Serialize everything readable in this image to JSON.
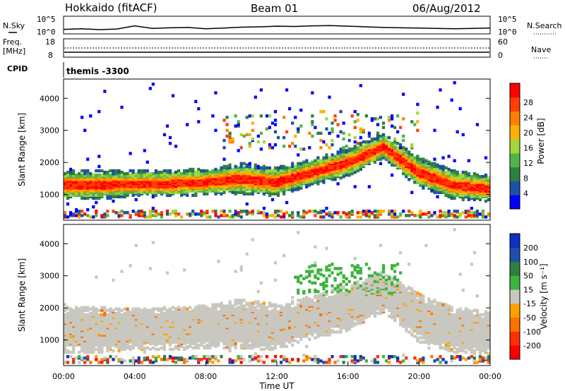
{
  "header": {
    "station": "Hokkaido (fitACF)",
    "beam": "Beam 01",
    "date": "06/Aug/2012"
  },
  "top_panels": {
    "nsky_label": "N.Sky",
    "nsearch_label": "N.Search",
    "noise_ticks": [
      "10^5",
      "10^0"
    ],
    "freq_label": "Freq.",
    "freq_unit": "[MHz]",
    "freq_ticks": [
      "18",
      "8"
    ],
    "nave_label": "Nave",
    "nave_ticks": [
      "60",
      "0"
    ],
    "cpid_label": "CPID",
    "cpid_value": "themis -3300"
  },
  "colors": {
    "power_scale": [
      "#0000ff",
      "#1e4fa8",
      "#2f7f3f",
      "#52b447",
      "#a3d63a",
      "#ffb000",
      "#ff8000",
      "#ff4000",
      "#ff0000"
    ],
    "velocity_scale": [
      "#1030c0",
      "#1e4fa8",
      "#2f7f3f",
      "#3cb43c",
      "#c8c8c0",
      "#ffa000",
      "#ff7000",
      "#ff3000",
      "#ff0000"
    ],
    "gray_scatter": "#c8c8c0"
  },
  "chart_data": [
    {
      "type": "line",
      "panel": "noise",
      "series": [
        {
          "name": "N.Sky",
          "x": [
            "00:00",
            "01:00",
            "02:00",
            "03:00",
            "04:00",
            "05:00",
            "06:00",
            "07:00",
            "08:00",
            "09:00",
            "10:00",
            "11:00",
            "12:00",
            "13:00",
            "14:00",
            "15:00",
            "16:00",
            "17:00",
            "18:00",
            "19:00",
            "20:00",
            "21:00",
            "22:00",
            "23:00",
            "24:00"
          ],
          "values": [
            1.2,
            1.4,
            1.1,
            1.3,
            2.3,
            1.5,
            1.7,
            1.8,
            1.4,
            1.6,
            1.9,
            2.0,
            2.2,
            2.1,
            2.3,
            2.4,
            2.2,
            2.0,
            1.8,
            1.7,
            1.6,
            1.5,
            1.4,
            1.5,
            1.6
          ]
        },
        {
          "name": "N.Search",
          "x": [],
          "values": []
        }
      ],
      "ylim": [
        0,
        5
      ],
      "yscale": "log"
    },
    {
      "type": "line",
      "panel": "frequency",
      "series": [
        {
          "name": "Freq.",
          "x": [
            "00:00",
            "24:00"
          ],
          "values": [
            10.9,
            10.9
          ]
        },
        {
          "name": "Nave",
          "x": [
            "00:00",
            "24:00"
          ],
          "values": [
            34,
            34
          ]
        }
      ],
      "ylim": [
        8,
        18
      ],
      "y2lim": [
        0,
        60
      ]
    },
    {
      "type": "heatmap",
      "panel": "power",
      "ylabel": "Slant Range [km]",
      "yticks": [
        "1000",
        "2000",
        "3000",
        "4000"
      ],
      "ylim": [
        200,
        4600
      ],
      "xlim": [
        0,
        24
      ],
      "colorbar": {
        "label": "Power [dB]",
        "ticks": [
          "28",
          "24",
          "20",
          "16",
          "12",
          "8",
          "4"
        ],
        "range": [
          0,
          32
        ]
      },
      "bands": [
        {
          "t": [
            0,
            2,
            4,
            6,
            8,
            10,
            12,
            14,
            16,
            18,
            20,
            22,
            24
          ],
          "center": [
            1300,
            1300,
            1350,
            1350,
            1400,
            1500,
            1400,
            1700,
            2000,
            2500,
            1700,
            1300,
            1200
          ],
          "halfwidth": [
            280,
            280,
            250,
            260,
            260,
            300,
            280,
            260,
            280,
            250,
            300,
            280,
            260
          ],
          "peak_db": 28
        }
      ]
    },
    {
      "type": "heatmap",
      "panel": "velocity",
      "ylabel": "Slant Range [km]",
      "yticks": [
        "1000",
        "2000",
        "3000",
        "4000"
      ],
      "ylim": [
        200,
        4600
      ],
      "xlim": [
        0,
        24
      ],
      "xlabel": "Time UT",
      "xticks": [
        "00:00",
        "04:00",
        "08:00",
        "12:00",
        "16:00",
        "20:00",
        "00:00"
      ],
      "colorbar": {
        "label": "Velocity [m s⁻¹]",
        "ticks": [
          "200",
          "100",
          "50",
          "15",
          "-15",
          "-50",
          "-100",
          "-200"
        ],
        "range": [
          -250,
          250
        ]
      }
    }
  ]
}
